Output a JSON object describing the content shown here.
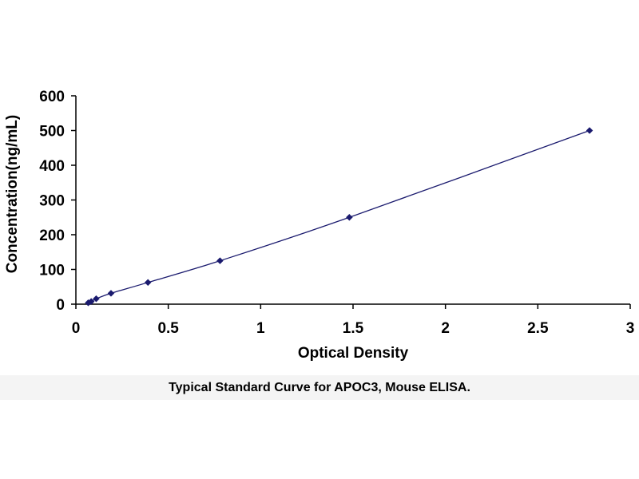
{
  "chart_data": {
    "type": "scatter",
    "title": "",
    "xlabel": "Optical Density",
    "ylabel": "Concentration(ng/mL)",
    "xlim": [
      0,
      3
    ],
    "ylim": [
      0,
      600
    ],
    "x_ticks": [
      "0",
      "0.5",
      "1",
      "1.5",
      "2",
      "2.5",
      "3"
    ],
    "y_ticks": [
      "0",
      "100",
      "200",
      "300",
      "400",
      "500",
      "600"
    ],
    "grid": false,
    "legend": "none",
    "series": [
      {
        "x": [
          0.067,
          0.083,
          0.11,
          0.19,
          0.39,
          0.78,
          1.48,
          2.78
        ],
        "y": [
          3.9,
          7.8,
          15.6,
          31.3,
          62.5,
          125,
          250,
          500
        ],
        "color": "#1a1a6e",
        "marker": "diamond",
        "line": "smooth"
      }
    ]
  },
  "caption": "Typical Standard Curve for APOC3, Mouse ELISA."
}
